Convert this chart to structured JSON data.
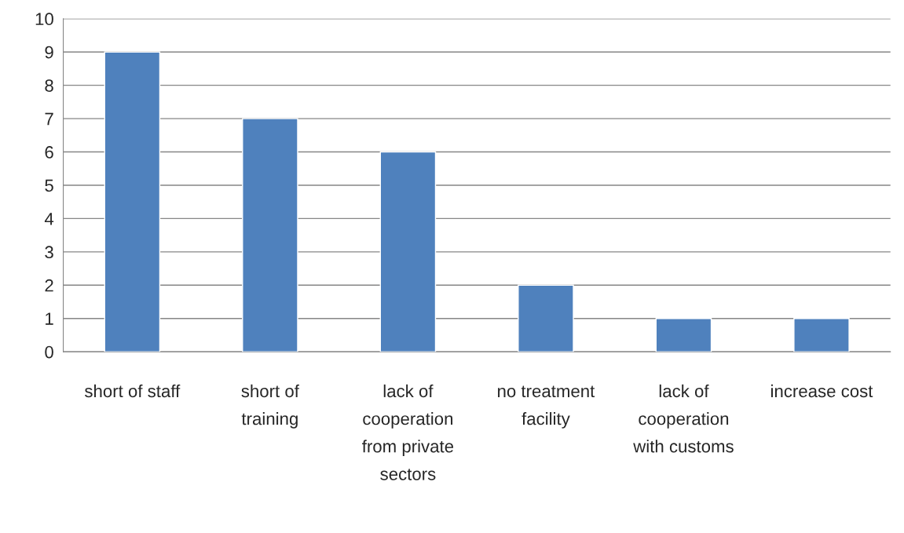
{
  "chart_data": {
    "type": "bar",
    "categories": [
      "short of staff",
      "short of training",
      "lack of cooperation from private sectors",
      "no treatment facility",
      "lack of cooperation with customs",
      "increase cost"
    ],
    "values": [
      9,
      7,
      6,
      2,
      1,
      1
    ],
    "color": "#4f81bd",
    "ylim": [
      0,
      10
    ],
    "yticks": [
      0,
      1,
      2,
      3,
      4,
      5,
      6,
      7,
      8,
      9,
      10
    ],
    "grid": "y"
  }
}
